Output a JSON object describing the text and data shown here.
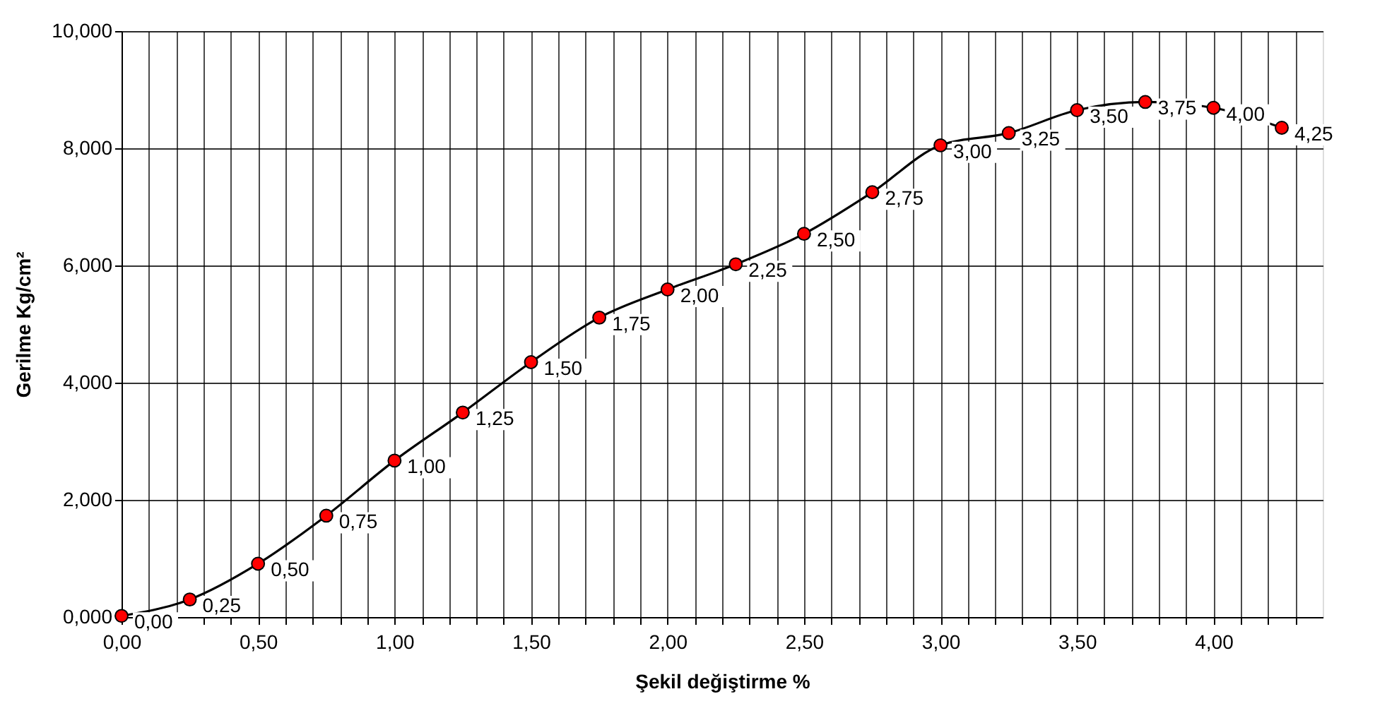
{
  "chart_data": {
    "type": "line",
    "xlabel": "Şekil değiştirme %",
    "ylabel": "Gerilme Kg/cm²",
    "x": [
      0,
      0.25,
      0.5,
      0.75,
      1.0,
      1.25,
      1.5,
      1.75,
      2.0,
      2.25,
      2.5,
      2.75,
      3.0,
      3.25,
      3.5,
      3.75,
      4.0,
      4.25
    ],
    "series": [
      {
        "color": "#ff0000",
        "values": [
          0.02,
          0.3,
          0.91,
          1.73,
          2.67,
          3.49,
          4.35,
          5.11,
          5.59,
          6.02,
          6.54,
          7.25,
          8.05,
          8.26,
          8.65,
          8.79,
          8.69,
          8.35
        ]
      }
    ],
    "annotations": [
      {
        "text": "0,00",
        "x": 0,
        "y": 0.02
      },
      {
        "text": "0,25",
        "x": 0.25,
        "y": 0.3
      },
      {
        "text": "0,50",
        "x": 0.5,
        "y": 0.91
      },
      {
        "text": "0,75",
        "x": 0.75,
        "y": 1.73
      },
      {
        "text": "1,00",
        "x": 1.0,
        "y": 2.67
      },
      {
        "text": "1,25",
        "x": 1.25,
        "y": 3.49
      },
      {
        "text": "1,50",
        "x": 1.5,
        "y": 4.35
      },
      {
        "text": "1,75",
        "x": 1.75,
        "y": 5.11
      },
      {
        "text": "2,00",
        "x": 2.0,
        "y": 5.59
      },
      {
        "text": "2,25",
        "x": 2.25,
        "y": 6.02
      },
      {
        "text": "2,50",
        "x": 2.5,
        "y": 6.54
      },
      {
        "text": "2,75",
        "x": 2.75,
        "y": 7.25
      },
      {
        "text": "3,00",
        "x": 3.0,
        "y": 8.05
      },
      {
        "text": "3,25",
        "x": 3.25,
        "y": 8.26
      },
      {
        "text": "3,50",
        "x": 3.5,
        "y": 8.65
      },
      {
        "text": "3,75",
        "x": 3.75,
        "y": 8.79
      },
      {
        "text": "4,00",
        "x": 4.0,
        "y": 8.69
      },
      {
        "text": "4,25",
        "x": 4.25,
        "y": 8.35
      }
    ],
    "xlim": [
      0,
      4.4
    ],
    "ylim": [
      0,
      10
    ],
    "xticks": [
      {
        "value": 0,
        "label": "0,00"
      },
      {
        "value": 0.1,
        "label": null
      },
      {
        "value": 0.2,
        "label": null
      },
      {
        "value": 0.3,
        "label": null
      },
      {
        "value": 0.4,
        "label": null
      },
      {
        "value": 0.5,
        "label": "0,50"
      },
      {
        "value": 0.6,
        "label": null
      },
      {
        "value": 0.7,
        "label": null
      },
      {
        "value": 0.8,
        "label": null
      },
      {
        "value": 0.9,
        "label": null
      },
      {
        "value": 1.0,
        "label": "1,00"
      },
      {
        "value": 1.1,
        "label": null
      },
      {
        "value": 1.2,
        "label": null
      },
      {
        "value": 1.3,
        "label": null
      },
      {
        "value": 1.4,
        "label": null
      },
      {
        "value": 1.5,
        "label": "1,50"
      },
      {
        "value": 1.6,
        "label": null
      },
      {
        "value": 1.7,
        "label": null
      },
      {
        "value": 1.8,
        "label": null
      },
      {
        "value": 1.9,
        "label": null
      },
      {
        "value": 2.0,
        "label": "2,00"
      },
      {
        "value": 2.1,
        "label": null
      },
      {
        "value": 2.2,
        "label": null
      },
      {
        "value": 2.3,
        "label": null
      },
      {
        "value": 2.4,
        "label": null
      },
      {
        "value": 2.5,
        "label": "2,50"
      },
      {
        "value": 2.6,
        "label": null
      },
      {
        "value": 2.7,
        "label": null
      },
      {
        "value": 2.8,
        "label": null
      },
      {
        "value": 2.9,
        "label": null
      },
      {
        "value": 3.0,
        "label": "3,00"
      },
      {
        "value": 3.1,
        "label": null
      },
      {
        "value": 3.2,
        "label": null
      },
      {
        "value": 3.3,
        "label": null
      },
      {
        "value": 3.4,
        "label": null
      },
      {
        "value": 3.5,
        "label": "3,50"
      },
      {
        "value": 3.6,
        "label": null
      },
      {
        "value": 3.7,
        "label": null
      },
      {
        "value": 3.8,
        "label": null
      },
      {
        "value": 3.9,
        "label": null
      },
      {
        "value": 4.0,
        "label": "4,00"
      },
      {
        "value": 4.1,
        "label": null
      },
      {
        "value": 4.2,
        "label": null
      },
      {
        "value": 4.3,
        "label": null
      }
    ],
    "yticks": [
      {
        "value": 0,
        "label": "0,000"
      },
      {
        "value": 2,
        "label": "2,000"
      },
      {
        "value": 4,
        "label": "4,000"
      },
      {
        "value": 6,
        "label": "6,000"
      },
      {
        "value": 8,
        "label": "8,000"
      },
      {
        "value": 10,
        "label": "10,000"
      }
    ],
    "grid": true,
    "marker": "circle",
    "line_style": "solid"
  }
}
